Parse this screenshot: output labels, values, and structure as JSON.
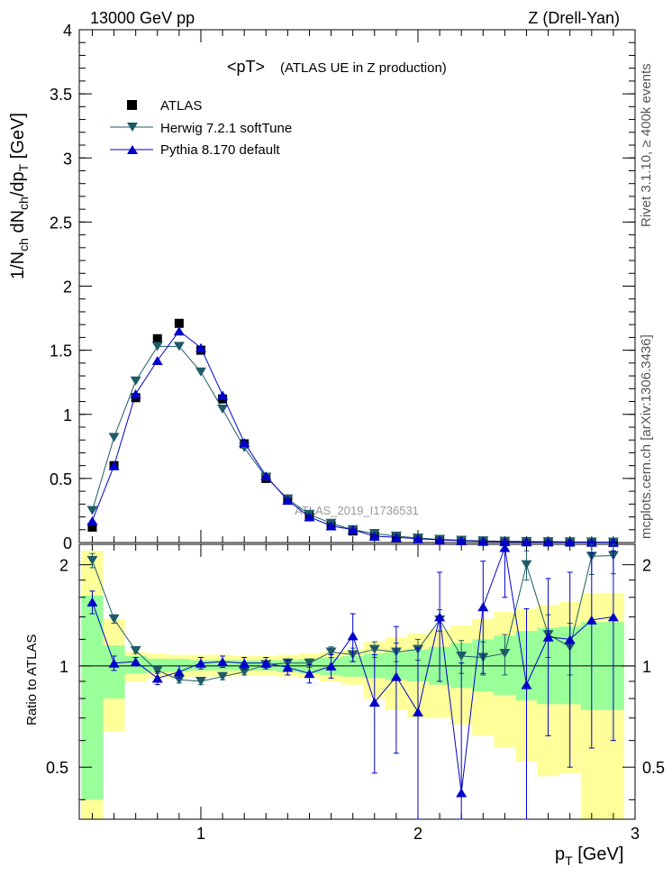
{
  "header": {
    "energy": "13000 GeV pp",
    "process": "Z (Drell-Yan)",
    "side_top": "Rivet 3.1.10, ≥ 400k events",
    "side_bottom": "mcplots.cern.ch [arXiv:1306.3436]",
    "watermark": "ATLAS_2019_I1736531"
  },
  "chart_data": [
    {
      "type": "line",
      "panel": "main",
      "title": "<pT>",
      "subtitle": "(ATLAS UE in Z production)",
      "ylabel": "1/N_ch dN_ch/dp_T [GeV]",
      "xlim": [
        0.44,
        3.0
      ],
      "ylim": [
        0,
        4
      ],
      "legend_position": "top-left",
      "x": [
        0.5,
        0.6,
        0.7,
        0.8,
        0.9,
        1.0,
        1.1,
        1.2,
        1.3,
        1.4,
        1.5,
        1.6,
        1.7,
        1.8,
        1.9,
        2.0,
        2.1,
        2.2,
        2.3,
        2.4,
        2.5,
        2.6,
        2.7,
        2.8,
        2.9
      ],
      "series": [
        {
          "name": "ATLAS",
          "marker": "square",
          "color": "#000000",
          "values": [
            0.12,
            0.6,
            1.13,
            1.59,
            1.71,
            1.5,
            1.12,
            0.77,
            0.5,
            0.33,
            0.21,
            0.13,
            0.09,
            0.05,
            0.04,
            0.03,
            0.02,
            0.015,
            0.01,
            0.008,
            0.006,
            0.005,
            0.004,
            0.003,
            0.002
          ]
        },
        {
          "name": "Herwig 7.2.1 softTune",
          "marker": "triangle-down",
          "color": "#1f5b66",
          "values": [
            0.25,
            0.82,
            1.26,
            1.53,
            1.53,
            1.33,
            1.04,
            0.74,
            0.51,
            0.34,
            0.22,
            0.15,
            0.1,
            0.07,
            0.05,
            0.035,
            0.025,
            0.018,
            0.013,
            0.01,
            0.008,
            0.006,
            0.005,
            0.004,
            0.003
          ]
        },
        {
          "name": "Pythia 8.170 default",
          "marker": "triangle-up",
          "color": "#0000cc",
          "values": [
            0.17,
            0.6,
            1.16,
            1.42,
            1.65,
            1.52,
            1.15,
            0.78,
            0.52,
            0.33,
            0.2,
            0.13,
            0.1,
            0.05,
            0.04,
            0.03,
            0.02,
            0.015,
            0.01,
            0.008,
            0.006,
            0.005,
            0.004,
            0.003,
            0.002
          ]
        }
      ],
      "y_ticks": [
        "0",
        "0.5",
        "1",
        "1.5",
        "2",
        "2.5",
        "3",
        "3.5",
        "4"
      ]
    },
    {
      "type": "line",
      "panel": "ratio",
      "ylabel": "Ratio to ATLAS",
      "xlabel": "p_T [GeV]",
      "xlim": [
        0.44,
        3.0
      ],
      "ylim": [
        0.35,
        2.3
      ],
      "y_ticks": [
        "0.5",
        "1",
        "2"
      ],
      "x_ticks": [
        "1",
        "2",
        "3"
      ],
      "x": [
        0.5,
        0.6,
        0.7,
        0.8,
        0.9,
        1.0,
        1.1,
        1.2,
        1.3,
        1.4,
        1.5,
        1.6,
        1.7,
        1.8,
        1.9,
        2.0,
        2.1,
        2.2,
        2.3,
        2.4,
        2.5,
        2.6,
        2.7,
        2.8,
        2.9
      ],
      "band_green": [
        [
          0.4,
          1.62
        ],
        [
          0.8,
          1.15
        ],
        [
          0.95,
          1.07
        ],
        [
          0.96,
          1.05
        ],
        [
          0.96,
          1.05
        ],
        [
          0.97,
          1.04
        ],
        [
          0.97,
          1.04
        ],
        [
          0.97,
          1.04
        ],
        [
          0.97,
          1.04
        ],
        [
          0.96,
          1.04
        ],
        [
          0.95,
          1.05
        ],
        [
          0.94,
          1.06
        ],
        [
          0.93,
          1.07
        ],
        [
          0.92,
          1.09
        ],
        [
          0.91,
          1.1
        ],
        [
          0.9,
          1.12
        ],
        [
          0.88,
          1.14
        ],
        [
          0.86,
          1.17
        ],
        [
          0.84,
          1.2
        ],
        [
          0.82,
          1.23
        ],
        [
          0.79,
          1.27
        ],
        [
          0.77,
          1.3
        ],
        [
          0.77,
          1.31
        ],
        [
          0.74,
          1.35
        ],
        [
          0.74,
          1.35
        ]
      ],
      "band_yellow": [
        [
          0.35,
          2.2
        ],
        [
          0.64,
          1.38
        ],
        [
          0.9,
          1.1
        ],
        [
          0.92,
          1.09
        ],
        [
          0.92,
          1.08
        ],
        [
          0.93,
          1.08
        ],
        [
          0.93,
          1.08
        ],
        [
          0.94,
          1.07
        ],
        [
          0.94,
          1.07
        ],
        [
          0.93,
          1.08
        ],
        [
          0.92,
          1.09
        ],
        [
          0.9,
          1.1
        ],
        [
          0.88,
          1.12
        ],
        [
          0.8,
          1.18
        ],
        [
          0.74,
          1.22
        ],
        [
          0.7,
          1.25
        ],
        [
          0.7,
          1.28
        ],
        [
          0.67,
          1.32
        ],
        [
          0.62,
          1.38
        ],
        [
          0.57,
          1.45
        ],
        [
          0.52,
          1.48
        ],
        [
          0.47,
          1.52
        ],
        [
          0.48,
          1.55
        ],
        [
          0.35,
          1.65
        ],
        [
          0.35,
          1.65
        ]
      ],
      "series": [
        {
          "name": "Herwig 7.2.1 softTune",
          "marker": "triangle-down",
          "color": "#1f5b66",
          "values": [
            2.06,
            1.38,
            1.11,
            0.97,
            0.91,
            0.9,
            0.93,
            0.96,
            1.01,
            1.02,
            1.02,
            1.1,
            1.08,
            1.12,
            1.1,
            1.12,
            1.37,
            1.07,
            1.06,
            1.09,
            2.0,
            1.24,
            1.14,
            2.12,
            2.13
          ],
          "err": [
            0.1,
            0.04,
            0.02,
            0.02,
            0.02,
            0.02,
            0.02,
            0.02,
            0.02,
            0.03,
            0.03,
            0.04,
            0.05,
            0.06,
            0.07,
            0.08,
            0.1,
            0.12,
            0.12,
            0.15,
            0.2,
            0.18,
            0.2,
            0.25,
            0.25
          ]
        },
        {
          "name": "Pythia 8.170 default",
          "marker": "triangle-up",
          "color": "#0000cc",
          "values": [
            1.55,
            1.02,
            1.03,
            0.92,
            0.96,
            1.02,
            1.03,
            1.02,
            1.02,
            0.99,
            0.95,
            1.0,
            1.23,
            0.78,
            0.93,
            0.73,
            1.4,
            0.42,
            1.5,
            2.25,
            0.88,
            1.22,
            1.2,
            1.37,
            1.4
          ],
          "err": [
            0.12,
            0.05,
            0.03,
            0.04,
            0.04,
            0.04,
            0.04,
            0.04,
            0.04,
            0.05,
            0.06,
            0.08,
            0.2,
            0.3,
            0.38,
            0.4,
            0.5,
            0.6,
            0.55,
            0.65,
            0.6,
            0.6,
            0.7,
            0.8,
            0.8
          ]
        }
      ]
    }
  ],
  "colors": {
    "green": "#99ff99",
    "yellow": "#ffff99",
    "herwig": "#1f5b66",
    "pythia": "#0000cc",
    "frame": "#000000"
  }
}
